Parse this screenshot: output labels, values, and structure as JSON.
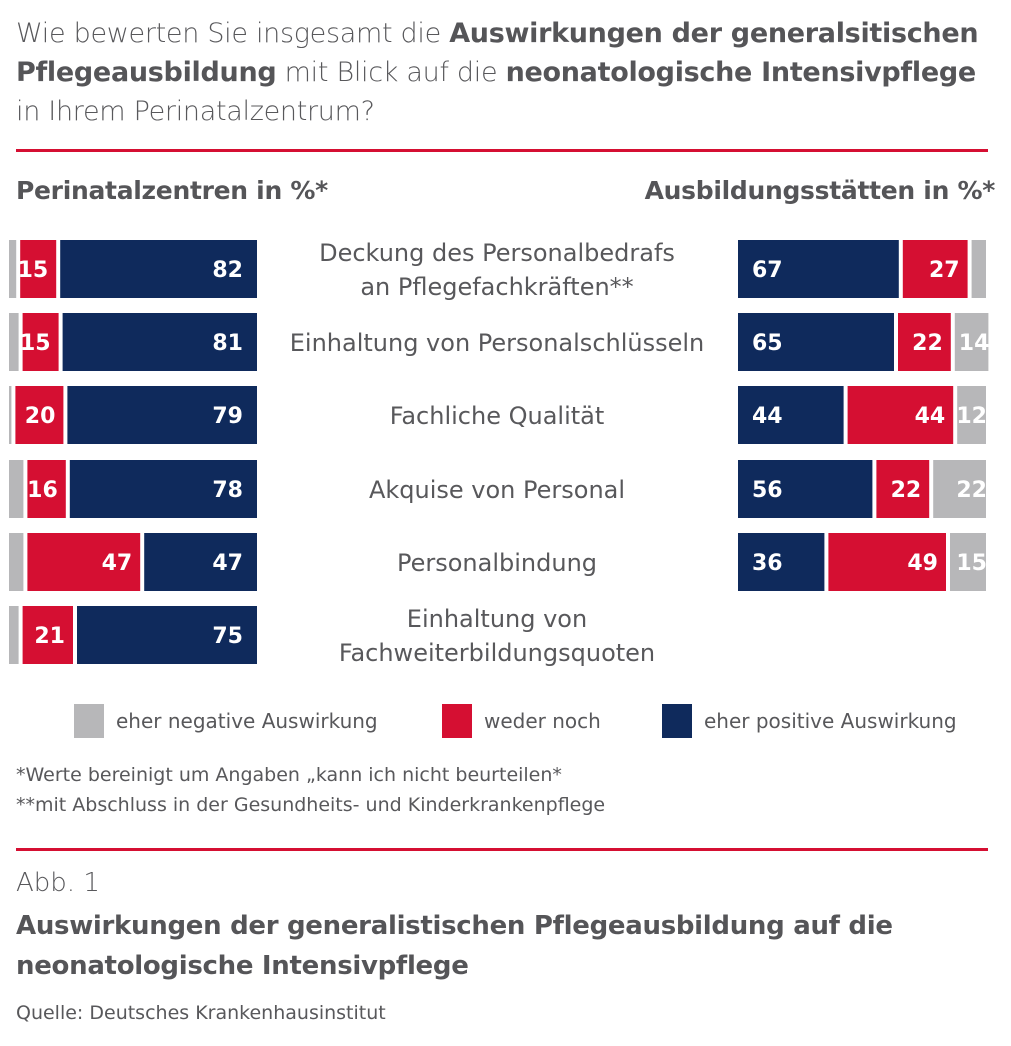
{
  "question": {
    "part1": "Wie bewerten Sie insgesamt die ",
    "bold1": "Auswirkungen der generalsitischen Pflegeausbildung",
    "part2": " mit Blick auf die ",
    "bold2": "neonatologische Intensivpflege",
    "part3": " in Ihrem Perinatalzentrum?"
  },
  "colors": {
    "negative": "#b7b7b9",
    "neutral": "#d50f32",
    "positive": "#0f2a5c",
    "rule": "#d50f32"
  },
  "chart_data": {
    "type": "bar",
    "subtype": "diverging-stacked-horizontal",
    "categories": [
      "Deckung des Personalbedrafs an Pflegefachkräften**",
      "Einhaltung von Personalschlüsseln",
      "Fachliche Qualität",
      "Akquise von Personal",
      "Personalbindung",
      "Einhaltung von Fachweiterbildungsquoten"
    ],
    "category_lines": [
      [
        "Deckung des Personalbedrafs",
        "an Pflegefachkräften**"
      ],
      [
        "Einhaltung von Personalschlüsseln"
      ],
      [
        "Fachliche Qualität"
      ],
      [
        "Akquise von Personal"
      ],
      [
        "Personalbindung"
      ],
      [
        "Einhaltung von",
        "Fachweiterbildungsquoten"
      ]
    ],
    "panels": [
      {
        "name": "Perinatalzentren in %*",
        "series": [
          {
            "name": "eher negative Auswirkung",
            "values": [
              3,
              4,
              1,
              6,
              6,
              4
            ]
          },
          {
            "name": "weder noch",
            "values": [
              15,
              15,
              20,
              16,
              47,
              21
            ]
          },
          {
            "name": "eher positive Auswirkung",
            "values": [
              82,
              81,
              79,
              78,
              47,
              75
            ]
          }
        ],
        "labels": {
          "negative": [
            "",
            "",
            "",
            "",
            "",
            ""
          ],
          "neutral": [
            "15",
            "15",
            "20",
            "16",
            "47",
            "21"
          ],
          "positive": [
            "82",
            "81",
            "79",
            "78",
            "47",
            "75"
          ]
        }
      },
      {
        "name": "Ausbildungsstätten in %*",
        "series": [
          {
            "name": "eher positive Auswirkung",
            "values": [
              67,
              65,
              44,
              56,
              36,
              null
            ]
          },
          {
            "name": "weder noch",
            "values": [
              27,
              22,
              44,
              22,
              49,
              null
            ]
          },
          {
            "name": "eher negative Auswirkung",
            "values": [
              6,
              14,
              12,
              22,
              15,
              null
            ]
          }
        ],
        "labels": {
          "positive": [
            "67",
            "65",
            "44",
            "56",
            "36",
            ""
          ],
          "neutral": [
            "27",
            "22",
            "44",
            "22",
            "49",
            ""
          ],
          "negative": [
            "",
            "14",
            "12",
            "22",
            "15",
            ""
          ]
        }
      }
    ],
    "legend": [
      "eher negative Auswirkung",
      "weder noch",
      "eher positive Auswirkung"
    ],
    "legend_position": "bottom",
    "xlim": [
      0,
      100
    ]
  },
  "footnotes": [
    "*Werte bereinigt um Angaben „kann ich nicht beurteilen*",
    "**mit Abschluss in der Gesundheits- und Kinderkrankenpflege"
  ],
  "figure": {
    "label": "Abb. 1",
    "title": "Auswirkungen der generalistischen Pflegeausbildung auf die neonatologische Intensivpflege"
  },
  "source": "Quelle: Deutsches Krankenhausinstitut"
}
